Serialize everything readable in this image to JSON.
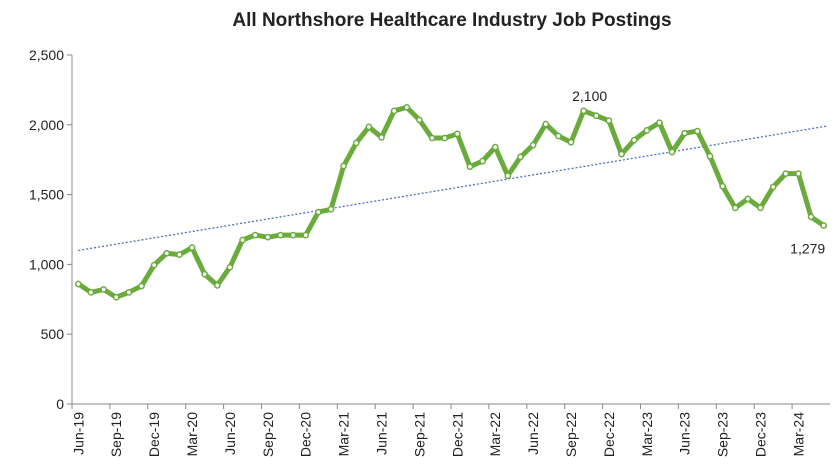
{
  "chart_data": {
    "type": "line",
    "title": "All Northshore Healthcare Industry Job Postings",
    "categories": [
      "Jun-19",
      null,
      null,
      "Sep-19",
      null,
      null,
      "Dec-19",
      null,
      null,
      "Mar-20",
      null,
      null,
      "Jun-20",
      null,
      null,
      "Sep-20",
      null,
      null,
      "Dec-20",
      null,
      null,
      "Mar-21",
      null,
      null,
      "Jun-21",
      null,
      null,
      "Sep-21",
      null,
      null,
      "Dec-21",
      null,
      null,
      "Mar-22",
      null,
      null,
      "Jun-22",
      null,
      null,
      "Sep-22",
      null,
      null,
      "Dec-22",
      null,
      null,
      "Mar-23",
      null,
      null,
      "Jun-23",
      null,
      null,
      "Sep-23",
      null,
      null,
      "Dec-23",
      null,
      null,
      "Mar-24",
      null,
      null
    ],
    "series": [
      {
        "name": "Job Postings",
        "color": "#6aab3c",
        "values": [
          860,
          800,
          820,
          765,
          800,
          845,
          995,
          1080,
          1070,
          1120,
          930,
          850,
          980,
          1175,
          1210,
          1195,
          1210,
          1210,
          1210,
          1375,
          1395,
          1705,
          1870,
          1985,
          1910,
          2100,
          2125,
          2035,
          1905,
          1905,
          1935,
          1700,
          1740,
          1840,
          1635,
          1770,
          1855,
          2005,
          1920,
          1875,
          2100,
          2065,
          2030,
          1790,
          1890,
          1960,
          2015,
          1805,
          1940,
          1955,
          1775,
          1560,
          1405,
          1470,
          1405,
          1555,
          1650,
          1650,
          1340,
          1279
        ],
        "value_labels": [
          null,
          null,
          null,
          null,
          null,
          null,
          null,
          null,
          null,
          null,
          null,
          null,
          null,
          null,
          null,
          null,
          null,
          null,
          null,
          null,
          null,
          null,
          null,
          null,
          null,
          null,
          null,
          null,
          null,
          null,
          null,
          null,
          null,
          null,
          null,
          null,
          null,
          null,
          null,
          null,
          "2,100",
          null,
          null,
          null,
          null,
          null,
          null,
          null,
          null,
          null,
          null,
          null,
          null,
          null,
          null,
          null,
          null,
          null,
          null,
          "1,279"
        ]
      }
    ],
    "trendline": {
      "color": "#4472c4",
      "start": 1100,
      "end": 1990
    },
    "ylim": [
      0,
      2500
    ],
    "yticks": [
      0,
      500,
      {
        "value": 1000,
        "label": "1,000"
      },
      {
        "value": 1500,
        "label": "1,500"
      },
      {
        "value": 2000,
        "label": "2,000"
      },
      {
        "value": 2500,
        "label": "2,500"
      }
    ]
  }
}
